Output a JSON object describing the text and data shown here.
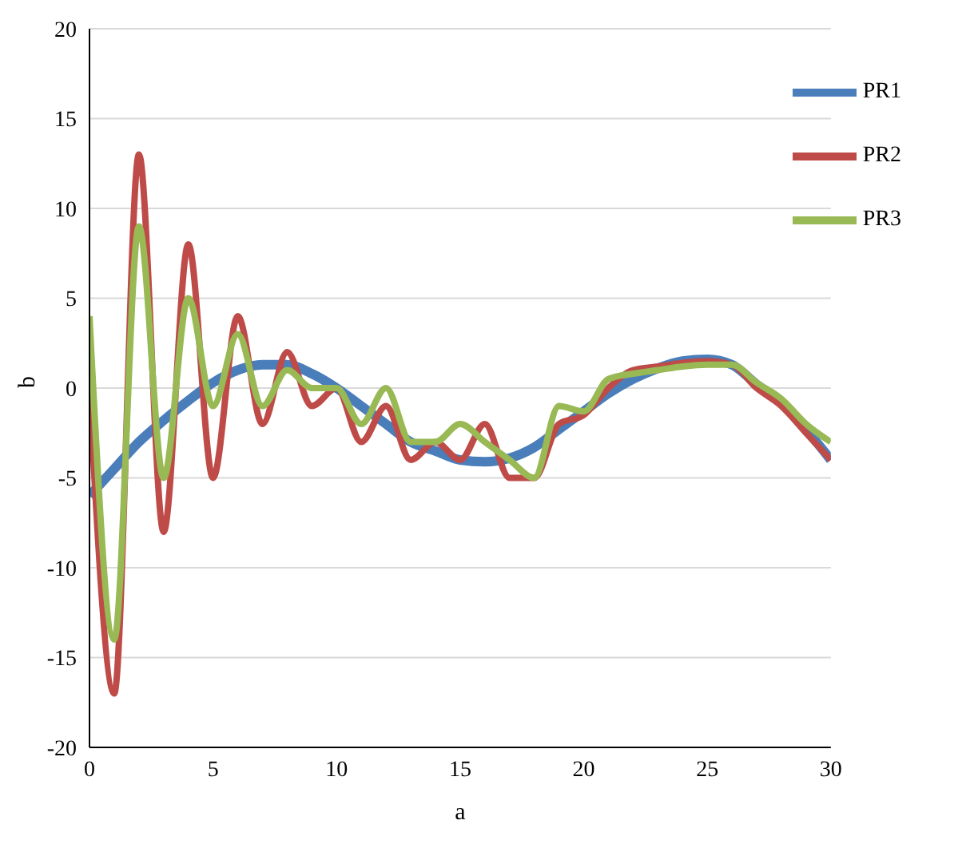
{
  "chart_data": {
    "type": "line",
    "xlabel": "a",
    "ylabel": "b",
    "x": [
      0,
      1,
      2,
      3,
      4,
      5,
      6,
      7,
      8,
      9,
      10,
      11,
      12,
      13,
      14,
      15,
      16,
      17,
      18,
      19,
      20,
      21,
      22,
      23,
      24,
      25,
      26,
      27,
      28,
      29,
      30
    ],
    "series": [
      {
        "name": "PR1",
        "color": "#4a7ebb",
        "values": [
          -6,
          -4.5,
          -3,
          -1.8,
          -0.7,
          0.3,
          1,
          1.3,
          1.3,
          0.8,
          0,
          -1,
          -2,
          -3,
          -3.5,
          -4,
          -4.1,
          -3.9,
          -3.3,
          -2.3,
          -1.3,
          -0.3,
          0.5,
          1.1,
          1.5,
          1.6,
          1.3,
          0.2,
          -0.8,
          -2.3,
          -4
        ]
      },
      {
        "name": "PR2",
        "color": "#be4b48",
        "values": [
          0,
          -17,
          13,
          -8,
          8,
          -5,
          4,
          -2,
          2,
          -1,
          0,
          -3,
          -1,
          -4,
          -3,
          -4,
          -2,
          -5,
          -5,
          -2,
          -1.5,
          0,
          1,
          1.2,
          1.4,
          1.5,
          1.3,
          0,
          -1,
          -2.5,
          -4
        ]
      },
      {
        "name": "PR3",
        "color": "#98b954",
        "values": [
          4,
          -14,
          9,
          -5,
          5,
          -1,
          3,
          -1,
          1,
          0,
          0,
          -2,
          0,
          -3,
          -3,
          -2,
          -3,
          -4,
          -5,
          -1,
          -1.3,
          0.5,
          0.8,
          1,
          1.2,
          1.3,
          1.3,
          0.3,
          -0.6,
          -2,
          -3
        ]
      }
    ],
    "xlim": [
      0,
      30
    ],
    "xticks": [
      0,
      5,
      10,
      15,
      20,
      25,
      30
    ],
    "ylim": [
      -20,
      20
    ],
    "yticks": [
      -20,
      -15,
      -10,
      -5,
      0,
      5,
      10,
      15,
      20
    ],
    "grid": "y",
    "legend": "top right",
    "marker": "none",
    "line_style": "solid"
  }
}
